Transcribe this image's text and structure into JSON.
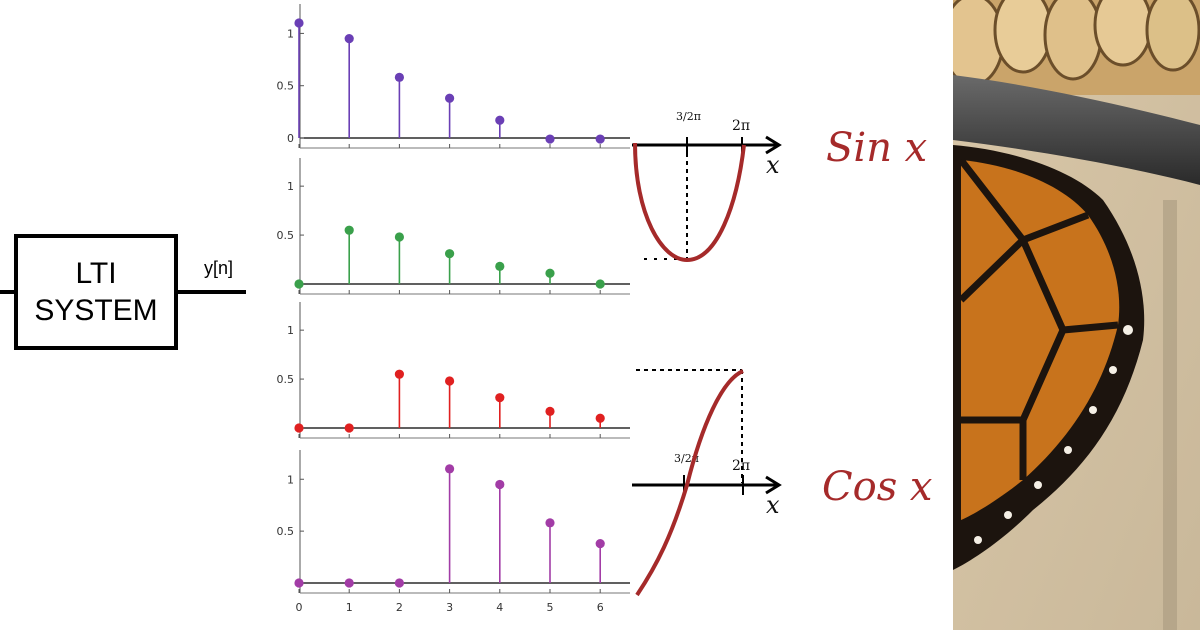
{
  "block_diagram": {
    "box_line1": "LTI",
    "box_line2": "SYSTEM",
    "output_label": "y[n]"
  },
  "chart_data": [
    {
      "type": "stem",
      "x": [
        0,
        1,
        2,
        3,
        4,
        5,
        6
      ],
      "values": [
        1.1,
        0.95,
        0.58,
        0.38,
        0.17,
        -0.01,
        -0.01
      ],
      "color": "#6a3fb5",
      "ylim": [
        0,
        1.15
      ],
      "yticks": [
        "0",
        "0.5",
        "1"
      ]
    },
    {
      "type": "stem",
      "x": [
        0,
        1,
        2,
        3,
        4,
        5,
        6
      ],
      "values": [
        0,
        0.55,
        0.48,
        0.31,
        0.18,
        0.11,
        0.0
      ],
      "color": "#3aa04b",
      "ylim": [
        0,
        1.15
      ],
      "yticks": [
        "0.5",
        "1"
      ]
    },
    {
      "type": "stem",
      "x": [
        0,
        1,
        2,
        3,
        4,
        5,
        6
      ],
      "values": [
        0,
        0,
        0.55,
        0.48,
        0.31,
        0.17,
        0.1
      ],
      "color": "#e02020",
      "ylim": [
        0,
        1.15
      ],
      "yticks": [
        "0.5",
        "1"
      ]
    },
    {
      "type": "stem",
      "x": [
        0,
        1,
        2,
        3,
        4,
        5,
        6
      ],
      "values": [
        0,
        0,
        0,
        1.1,
        0.95,
        0.58,
        0.38
      ],
      "color": "#a23ca6",
      "ylim": [
        0,
        1.15
      ],
      "yticks": [
        "0.5",
        "1"
      ],
      "xticks": [
        "0",
        "1",
        "2",
        "3",
        "4",
        "5",
        "6"
      ]
    }
  ],
  "sketch": {
    "sin_label": "Sin x",
    "cos_label": "Cos x",
    "axis_var": "x",
    "tick_three_halves_pi": "3/2π",
    "tick_two_pi": "2π",
    "curve_color": "#a52a2a"
  },
  "photo": {
    "subject": "monarch butterfly under basket rim"
  }
}
